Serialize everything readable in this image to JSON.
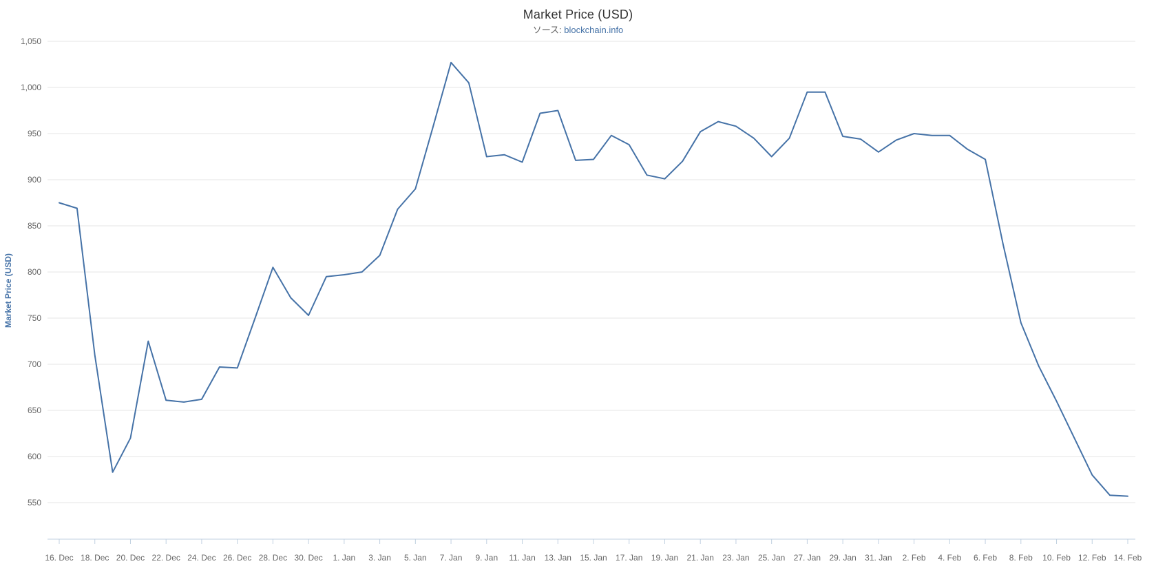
{
  "page": {
    "background": "#FFFFFF"
  },
  "chart": {
    "title": "Market Price (USD)",
    "subtitle_prefix": "ソース: ",
    "subtitle_link": "blockchain.info",
    "y_axis_title": "Market Price (USD)"
  },
  "chart_data": {
    "type": "line",
    "title": "Market Price (USD)",
    "subtitle": "ソース: blockchain.info",
    "xlabel": "",
    "ylabel": "Market Price (USD)",
    "legend": "none",
    "grid": "horizontal",
    "ylim": [
      510,
      1050
    ],
    "y_ticks": [
      550,
      600,
      650,
      700,
      750,
      800,
      850,
      900,
      950,
      1000,
      1050
    ],
    "y_tick_labels": [
      "550",
      "600",
      "650",
      "700",
      "750",
      "800",
      "850",
      "900",
      "950",
      "1,000",
      "1,050"
    ],
    "x": [
      "16. Dec",
      "17. Dec",
      "18. Dec",
      "19. Dec",
      "20. Dec",
      "21. Dec",
      "22. Dec",
      "23. Dec",
      "24. Dec",
      "25. Dec",
      "26. Dec",
      "27. Dec",
      "28. Dec",
      "29. Dec",
      "30. Dec",
      "31. Dec",
      "1. Jan",
      "2. Jan",
      "3. Jan",
      "4. Jan",
      "5. Jan",
      "6. Jan",
      "7. Jan",
      "8. Jan",
      "9. Jan",
      "10. Jan",
      "11. Jan",
      "12. Jan",
      "13. Jan",
      "14. Jan",
      "15. Jan",
      "16. Jan",
      "17. Jan",
      "18. Jan",
      "19. Jan",
      "20. Jan",
      "21. Jan",
      "22. Jan",
      "23. Jan",
      "24. Jan",
      "25. Jan",
      "26. Jan",
      "27. Jan",
      "28. Jan",
      "29. Jan",
      "30. Jan",
      "31. Jan",
      "1. Feb",
      "2. Feb",
      "3. Feb",
      "4. Feb",
      "5. Feb",
      "6. Feb",
      "7. Feb",
      "8. Feb",
      "9. Feb",
      "10. Feb",
      "11. Feb",
      "12. Feb",
      "13. Feb",
      "14. Feb"
    ],
    "values": [
      875,
      869,
      710,
      583,
      620,
      725,
      661,
      659,
      662,
      697,
      696,
      750,
      805,
      772,
      753,
      795,
      797,
      800,
      818,
      868,
      890,
      958,
      1027,
      1005,
      925,
      927,
      919,
      972,
      975,
      921,
      922,
      948,
      938,
      905,
      901,
      920,
      952,
      963,
      958,
      945,
      925,
      945,
      995,
      995,
      947,
      944,
      930,
      943,
      950,
      948,
      948,
      933,
      922,
      830,
      745,
      698,
      660,
      620,
      580,
      558,
      557
    ],
    "x_tick_labels": [
      "16. Dec",
      "18. Dec",
      "20. Dec",
      "22. Dec",
      "24. Dec",
      "26. Dec",
      "28. Dec",
      "30. Dec",
      "1. Jan",
      "3. Jan",
      "5. Jan",
      "7. Jan",
      "9. Jan",
      "11. Jan",
      "13. Jan",
      "15. Jan",
      "17. Jan",
      "19. Jan",
      "21. Jan",
      "23. Jan",
      "25. Jan",
      "27. Jan",
      "29. Jan",
      "31. Jan",
      "2. Feb",
      "4. Feb",
      "6. Feb",
      "8. Feb",
      "10. Feb",
      "12. Feb",
      "14. Feb"
    ],
    "x_tick_step": 2,
    "colors": {
      "line": "#4572A7",
      "grid": "#E6E6E6",
      "axis_line": "#C0D0E0",
      "tick": "#C0D0E0",
      "axis_labels": "#666666",
      "title": "#333333",
      "subtitle": "#666666",
      "subtitle_link": "#4572A7",
      "y_axis_title": "#4572A7",
      "background": "#FFFFFF"
    }
  }
}
